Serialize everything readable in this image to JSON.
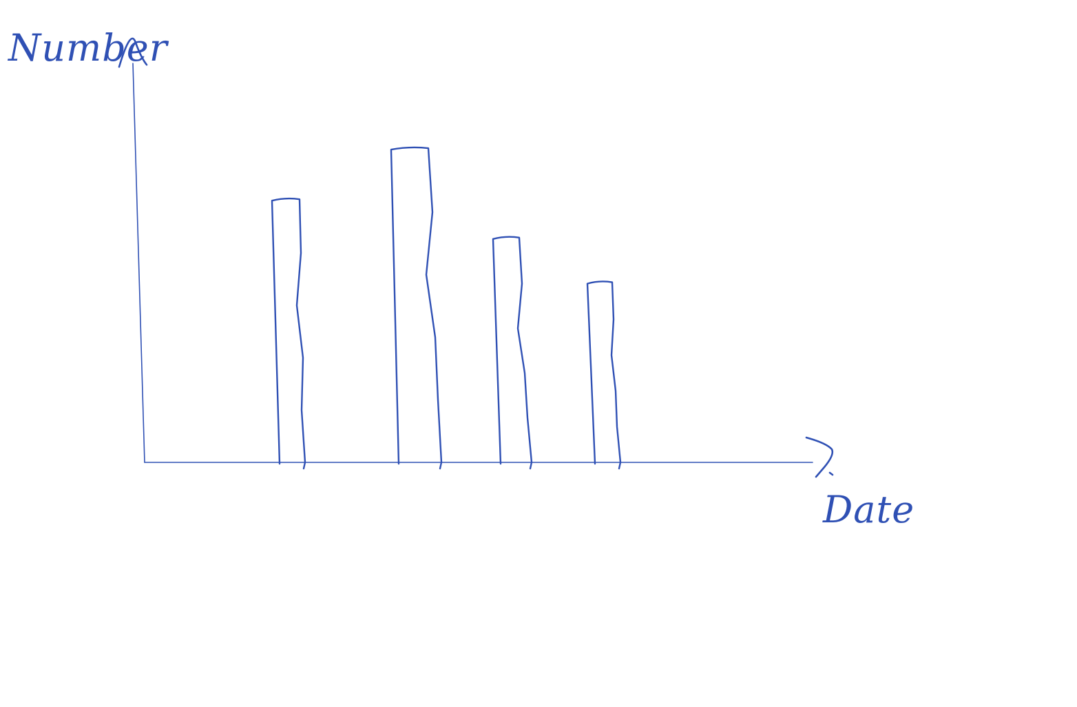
{
  "colors": {
    "ink": "#2f50b4",
    "background": "#ffffff"
  },
  "chart_data": {
    "type": "bar",
    "style": "hand-drawn sketch",
    "xlabel": "Date",
    "ylabel": "Number",
    "categories": [
      "",
      "",
      "",
      ""
    ],
    "values": [
      82,
      98,
      70,
      56
    ],
    "ylim": [
      0,
      125
    ],
    "grid": false,
    "legend": "none",
    "ticks": false
  }
}
